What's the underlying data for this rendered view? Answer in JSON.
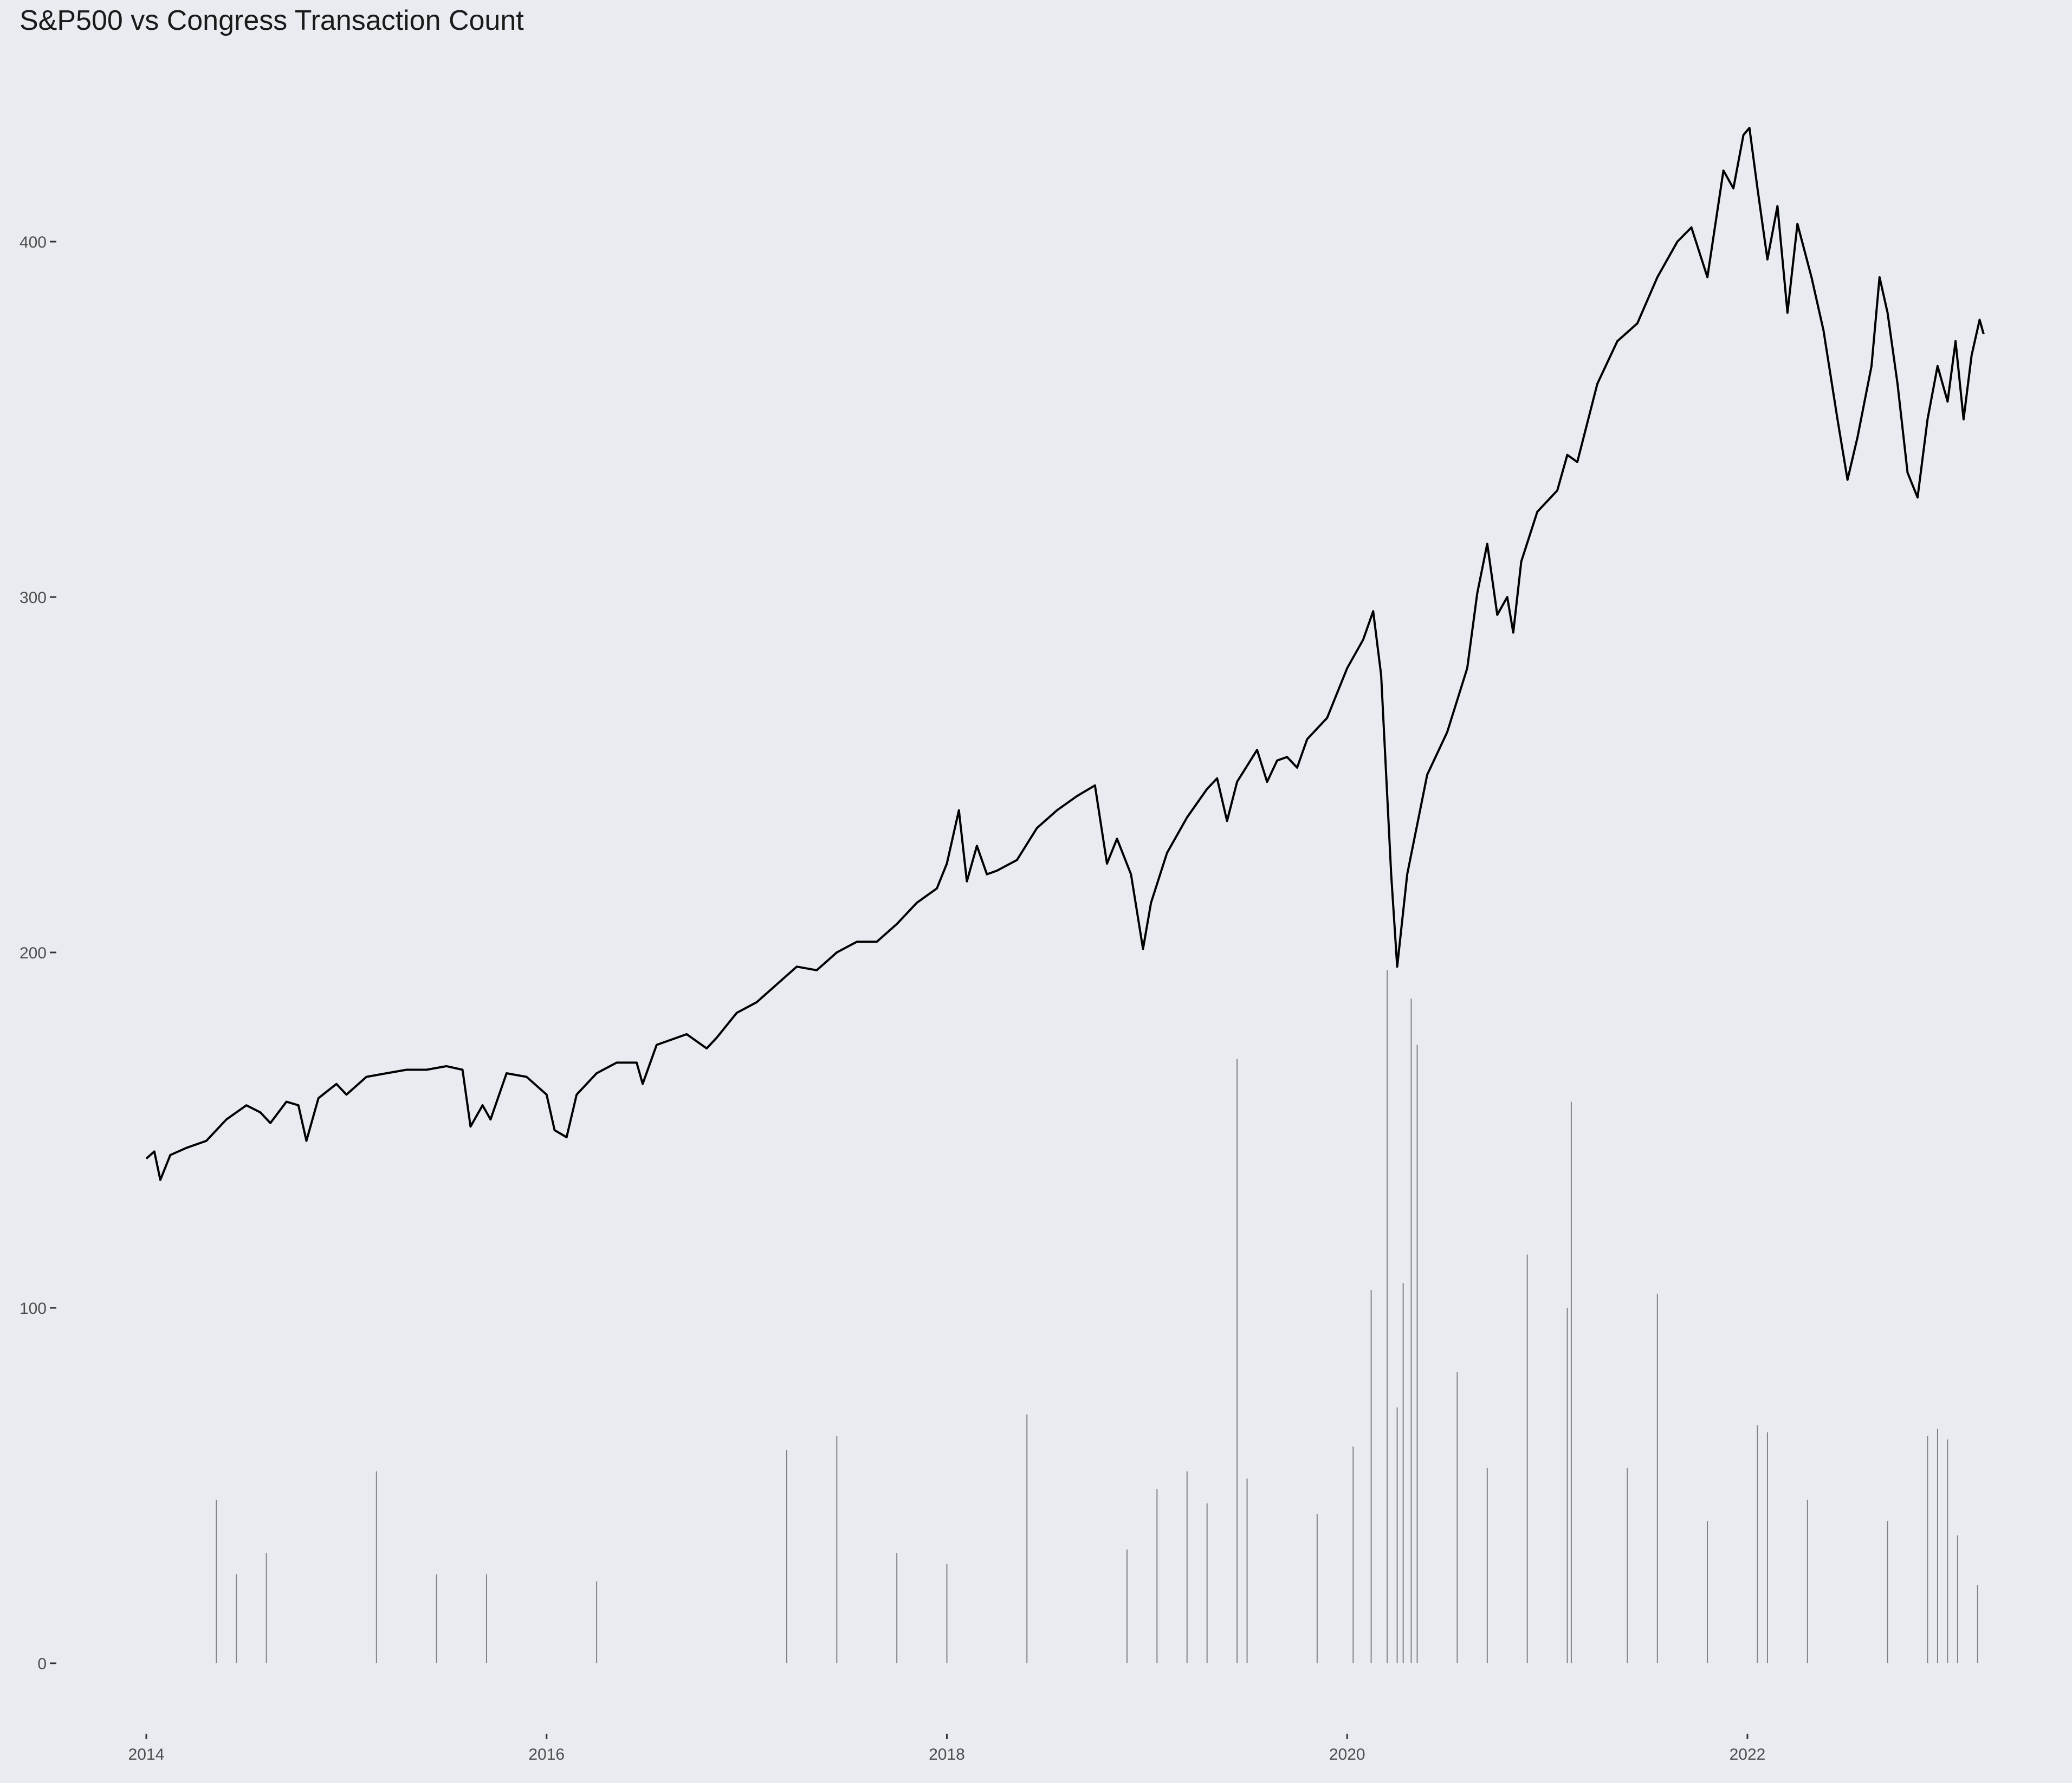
{
  "chart_data": {
    "type": "line",
    "title": "S&P500 vs Congress Transaction Count",
    "xlabel": "",
    "ylabel": "",
    "x_ticks": [
      "2014",
      "2016",
      "2018",
      "2020",
      "2022"
    ],
    "y_ticks": [
      0,
      100,
      200,
      300,
      400
    ],
    "xlim": [
      2014.0,
      2023.25
    ],
    "ylim": [
      -20,
      437
    ],
    "grid": false,
    "legend": "none",
    "colors": {
      "background": "#e8ecf1",
      "line": "#000000",
      "bars": "#555555"
    },
    "series": [
      {
        "type": "line",
        "points": [
          [
            2014.0,
            142
          ],
          [
            2014.04,
            144
          ],
          [
            2014.07,
            136
          ],
          [
            2014.12,
            143
          ],
          [
            2014.2,
            145
          ],
          [
            2014.3,
            147
          ],
          [
            2014.4,
            153
          ],
          [
            2014.5,
            157
          ],
          [
            2014.57,
            155
          ],
          [
            2014.62,
            152
          ],
          [
            2014.7,
            158
          ],
          [
            2014.76,
            157
          ],
          [
            2014.8,
            147
          ],
          [
            2014.86,
            159
          ],
          [
            2014.95,
            163
          ],
          [
            2015.0,
            160
          ],
          [
            2015.1,
            165
          ],
          [
            2015.2,
            166
          ],
          [
            2015.3,
            167
          ],
          [
            2015.4,
            167
          ],
          [
            2015.5,
            168
          ],
          [
            2015.58,
            167
          ],
          [
            2015.62,
            151
          ],
          [
            2015.68,
            157
          ],
          [
            2015.72,
            153
          ],
          [
            2015.8,
            166
          ],
          [
            2015.9,
            165
          ],
          [
            2016.0,
            160
          ],
          [
            2016.04,
            150
          ],
          [
            2016.1,
            148
          ],
          [
            2016.15,
            160
          ],
          [
            2016.25,
            166
          ],
          [
            2016.35,
            169
          ],
          [
            2016.45,
            169
          ],
          [
            2016.48,
            163
          ],
          [
            2016.55,
            174
          ],
          [
            2016.7,
            177
          ],
          [
            2016.8,
            173
          ],
          [
            2016.85,
            176
          ],
          [
            2016.95,
            183
          ],
          [
            2017.05,
            186
          ],
          [
            2017.15,
            191
          ],
          [
            2017.25,
            196
          ],
          [
            2017.35,
            195
          ],
          [
            2017.45,
            200
          ],
          [
            2017.55,
            203
          ],
          [
            2017.65,
            203
          ],
          [
            2017.75,
            208
          ],
          [
            2017.85,
            214
          ],
          [
            2017.95,
            218
          ],
          [
            2018.0,
            225
          ],
          [
            2018.06,
            240
          ],
          [
            2018.1,
            220
          ],
          [
            2018.15,
            230
          ],
          [
            2018.2,
            222
          ],
          [
            2018.25,
            223
          ],
          [
            2018.35,
            226
          ],
          [
            2018.45,
            235
          ],
          [
            2018.55,
            240
          ],
          [
            2018.65,
            244
          ],
          [
            2018.74,
            247
          ],
          [
            2018.8,
            225
          ],
          [
            2018.85,
            232
          ],
          [
            2018.92,
            222
          ],
          [
            2018.98,
            201
          ],
          [
            2019.02,
            214
          ],
          [
            2019.1,
            228
          ],
          [
            2019.2,
            238
          ],
          [
            2019.3,
            246
          ],
          [
            2019.35,
            249
          ],
          [
            2019.4,
            237
          ],
          [
            2019.45,
            248
          ],
          [
            2019.55,
            257
          ],
          [
            2019.6,
            248
          ],
          [
            2019.65,
            254
          ],
          [
            2019.7,
            255
          ],
          [
            2019.75,
            252
          ],
          [
            2019.8,
            260
          ],
          [
            2019.9,
            266
          ],
          [
            2020.0,
            280
          ],
          [
            2020.08,
            288
          ],
          [
            2020.13,
            296
          ],
          [
            2020.17,
            278
          ],
          [
            2020.22,
            222
          ],
          [
            2020.25,
            196
          ],
          [
            2020.3,
            222
          ],
          [
            2020.4,
            250
          ],
          [
            2020.5,
            262
          ],
          [
            2020.6,
            280
          ],
          [
            2020.65,
            301
          ],
          [
            2020.7,
            315
          ],
          [
            2020.75,
            295
          ],
          [
            2020.8,
            300
          ],
          [
            2020.83,
            290
          ],
          [
            2020.87,
            310
          ],
          [
            2020.95,
            324
          ],
          [
            2021.05,
            330
          ],
          [
            2021.1,
            340
          ],
          [
            2021.15,
            338
          ],
          [
            2021.25,
            360
          ],
          [
            2021.35,
            372
          ],
          [
            2021.45,
            377
          ],
          [
            2021.55,
            390
          ],
          [
            2021.65,
            400
          ],
          [
            2021.72,
            404
          ],
          [
            2021.8,
            390
          ],
          [
            2021.88,
            420
          ],
          [
            2021.93,
            415
          ],
          [
            2021.98,
            430
          ],
          [
            2022.01,
            432
          ],
          [
            2022.05,
            415
          ],
          [
            2022.1,
            395
          ],
          [
            2022.15,
            410
          ],
          [
            2022.2,
            380
          ],
          [
            2022.25,
            405
          ],
          [
            2022.32,
            390
          ],
          [
            2022.38,
            375
          ],
          [
            2022.45,
            350
          ],
          [
            2022.5,
            333
          ],
          [
            2022.55,
            345
          ],
          [
            2022.62,
            365
          ],
          [
            2022.66,
            390
          ],
          [
            2022.7,
            380
          ],
          [
            2022.75,
            360
          ],
          [
            2022.8,
            335
          ],
          [
            2022.85,
            328
          ],
          [
            2022.9,
            350
          ],
          [
            2022.95,
            365
          ],
          [
            2023.0,
            355
          ],
          [
            2023.04,
            372
          ],
          [
            2023.08,
            350
          ],
          [
            2023.12,
            368
          ],
          [
            2023.16,
            378
          ],
          [
            2023.18,
            374
          ]
        ]
      },
      {
        "type": "bar",
        "values_note": "",
        "points": [
          [
            2014.35,
            46
          ],
          [
            2014.45,
            25
          ],
          [
            2014.6,
            31
          ],
          [
            2015.15,
            54
          ],
          [
            2015.45,
            25
          ],
          [
            2015.7,
            25
          ],
          [
            2016.25,
            23
          ],
          [
            2017.2,
            60
          ],
          [
            2017.45,
            64
          ],
          [
            2017.75,
            31
          ],
          [
            2018.0,
            28
          ],
          [
            2018.4,
            70
          ],
          [
            2018.9,
            32
          ],
          [
            2019.05,
            49
          ],
          [
            2019.2,
            54
          ],
          [
            2019.3,
            45
          ],
          [
            2019.45,
            170
          ],
          [
            2019.5,
            52
          ],
          [
            2019.85,
            42
          ],
          [
            2020.03,
            61
          ],
          [
            2020.12,
            105
          ],
          [
            2020.2,
            195
          ],
          [
            2020.25,
            72
          ],
          [
            2020.28,
            107
          ],
          [
            2020.32,
            187
          ],
          [
            2020.35,
            174
          ],
          [
            2020.55,
            82
          ],
          [
            2020.7,
            55
          ],
          [
            2020.9,
            115
          ],
          [
            2021.1,
            100
          ],
          [
            2021.12,
            158
          ],
          [
            2021.4,
            55
          ],
          [
            2021.55,
            104
          ],
          [
            2021.8,
            40
          ],
          [
            2022.05,
            67
          ],
          [
            2022.1,
            65
          ],
          [
            2022.3,
            46
          ],
          [
            2022.7,
            40
          ],
          [
            2022.9,
            64
          ],
          [
            2022.95,
            66
          ],
          [
            2023.0,
            63
          ],
          [
            2023.05,
            36
          ],
          [
            2023.15,
            22
          ]
        ]
      }
    ]
  }
}
